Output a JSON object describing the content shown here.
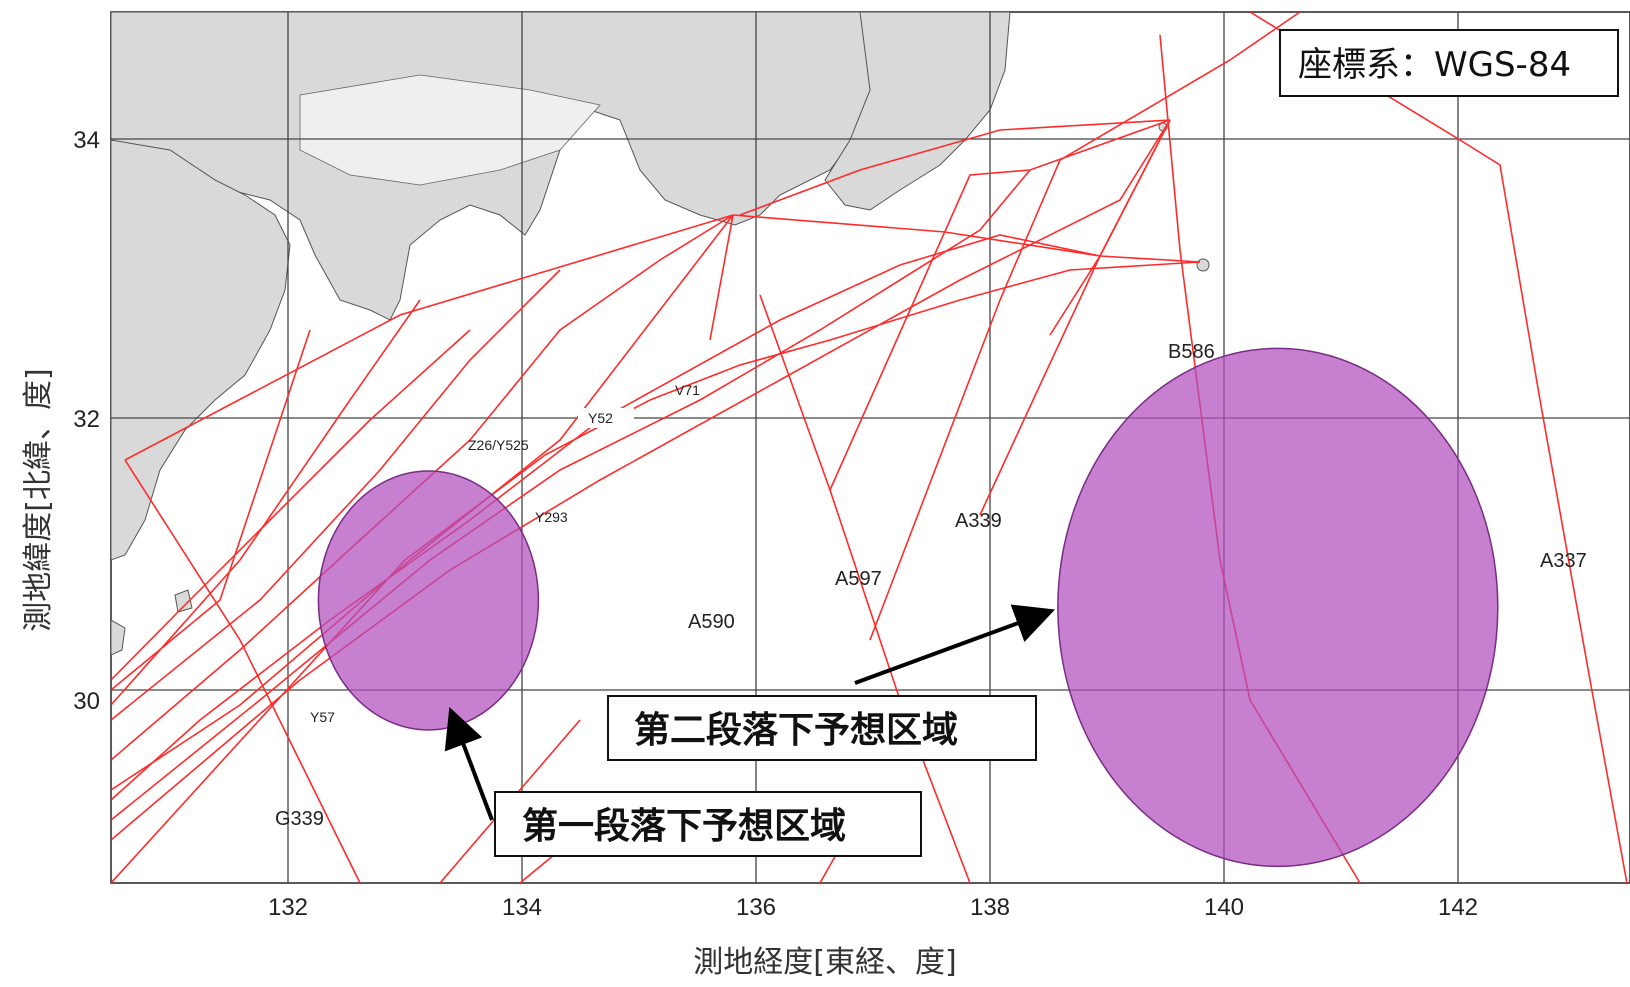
{
  "map": {
    "crs_label": "座標系：WGS-84",
    "x_axis_title": "測地経度[東経、度]",
    "y_axis_title": "測地緯度[北緯、度]",
    "x_ticks": [
      "132",
      "134",
      "136",
      "138",
      "140",
      "142"
    ],
    "y_ticks": [
      "34",
      "32",
      "30"
    ],
    "colors": {
      "route": "#ff2b2b",
      "zone_fill": "#b14fbd",
      "zone_stroke": "#7a2b86",
      "land": "#d9d9d9",
      "grid": "#444444"
    },
    "route_labels": [
      "Y52",
      "V71",
      "Z26/Y525",
      "Y293",
      "Y57",
      "G339",
      "A590",
      "A597",
      "A339",
      "B586",
      "A337"
    ],
    "zones": [
      {
        "label": "第一段落下予想区域",
        "center_lon": 133.2,
        "center_lat": 30.65,
        "radius_deg": 0.94
      },
      {
        "label": "第二段落下予想区域",
        "center_lon": 140.46,
        "center_lat": 30.6,
        "radius_deg": 1.88
      }
    ]
  }
}
